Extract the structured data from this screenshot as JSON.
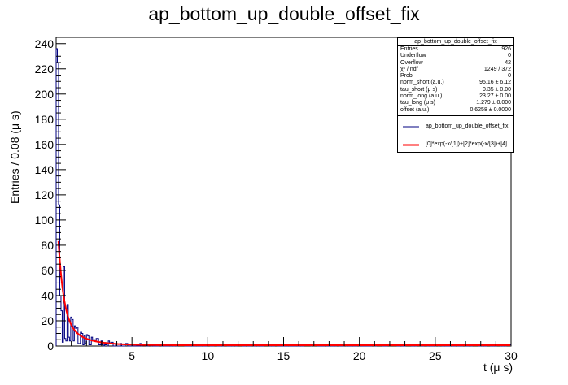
{
  "chart_data": {
    "type": "bar",
    "title": "ap_bottom_up_double_offset_fix",
    "xlabel": "t (μ s)",
    "ylabel": "Entries / 0.08 (μ s)",
    "xlim": [
      0.0,
      30.0
    ],
    "ylim": [
      0,
      245
    ],
    "xticks": [
      5,
      10,
      15,
      20,
      25,
      30
    ],
    "yticks": [
      0,
      20,
      40,
      60,
      80,
      100,
      120,
      140,
      160,
      180,
      200,
      220,
      240
    ],
    "bin_width": 0.08,
    "histogram": {
      "name": "ap_bottom_up_double_offset_fix",
      "color": "#000080",
      "spikes": [
        {
          "x": 0.04,
          "y": 236
        },
        {
          "x": 0.12,
          "y": 225
        },
        {
          "x": 0.2,
          "y": 112
        },
        {
          "x": 0.28,
          "y": 40
        },
        {
          "x": 0.36,
          "y": 28
        }
      ]
    },
    "fit": {
      "name": "[0]*exp(-x/[1])+[2]*exp(-x/[3])+[4]",
      "color": "#ff0000",
      "norm_short": 95.16,
      "tau_short": 0.35,
      "norm_long": 23.27,
      "tau_long": 1.279,
      "offset": 0.6258
    },
    "stats": {
      "title": "ap_bottom_up_double_offset_fix",
      "rows": [
        {
          "label": "Entries",
          "value": "926"
        },
        {
          "label": "Underflow",
          "value": "0"
        },
        {
          "label": "Overflow",
          "value": "42"
        },
        {
          "label": "χ² / ndf",
          "value": "1249 / 372"
        },
        {
          "label": "Prob",
          "value": "0"
        },
        {
          "label": "norm_short (a.u.)",
          "value": "95.16 ± 6.12"
        },
        {
          "label": "tau_short (μ s)",
          "value": "0.35 ± 0.00"
        },
        {
          "label": "norm_long (a.u.)",
          "value": "23.27 ± 0.00"
        },
        {
          "label": "tau_long (μ s)",
          "value": "1.279 ± 0.000"
        },
        {
          "label": "offset (a.u.)",
          "value": "0.6258 ± 0.0000"
        }
      ]
    },
    "legend": [
      {
        "label": "ap_bottom_up_double_offset_fix",
        "color": "#000080"
      },
      {
        "label": "[0]*exp(-x/[1])+[2]*exp(-x/[3])+[4]",
        "color": "#ff0000"
      }
    ]
  }
}
